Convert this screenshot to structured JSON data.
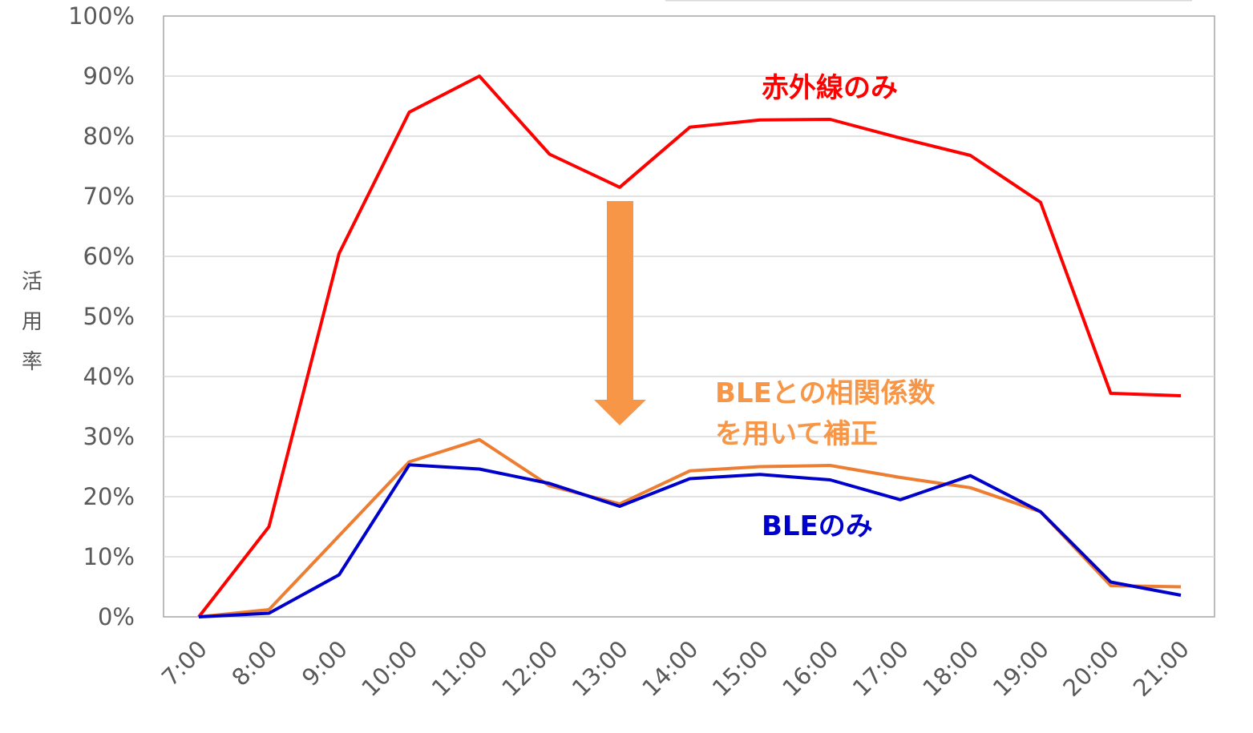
{
  "chart_data": {
    "type": "line",
    "title": "",
    "xlabel": "",
    "ylabel": "活用率",
    "categories": [
      "7:00",
      "8:00",
      "9:00",
      "10:00",
      "11:00",
      "12:00",
      "13:00",
      "14:00",
      "15:00",
      "16:00",
      "17:00",
      "18:00",
      "19:00",
      "20:00",
      "21:00"
    ],
    "yticks": [
      "0%",
      "10%",
      "20%",
      "30%",
      "40%",
      "50%",
      "60%",
      "70%",
      "80%",
      "90%",
      "100%"
    ],
    "ylim": [
      0,
      100
    ],
    "grid": true,
    "legend": "none",
    "series": [
      {
        "name": "赤外線のみ",
        "color": "#ff0000",
        "values": [
          0,
          15,
          60.5,
          84,
          90,
          77,
          71.5,
          81.5,
          82.7,
          82.8,
          79.7,
          76.8,
          69,
          37.2,
          36.8
        ]
      },
      {
        "name": "",
        "color": "#ed7d31",
        "values": [
          0,
          1.2,
          13.5,
          25.8,
          29.5,
          21.8,
          18.8,
          24.3,
          25,
          25.2,
          23.2,
          21.5,
          17.5,
          5.2,
          5
        ]
      },
      {
        "name": "BLEのみ",
        "color": "#0000cc",
        "values": [
          0,
          0.6,
          7,
          25.3,
          24.6,
          22.2,
          18.4,
          23,
          23.7,
          22.8,
          19.5,
          23.5,
          17.5,
          5.8,
          3.6
        ]
      }
    ],
    "annotations": [
      {
        "text": "赤外線のみ",
        "color": "#ff0000"
      },
      {
        "text": "BLEとの相関係数",
        "color": "#f79646"
      },
      {
        "text": "を用いて補正",
        "color": "#f79646"
      },
      {
        "text": "BLEのみ",
        "color": "#0000cc"
      }
    ],
    "arrow_color": "#f79646"
  }
}
